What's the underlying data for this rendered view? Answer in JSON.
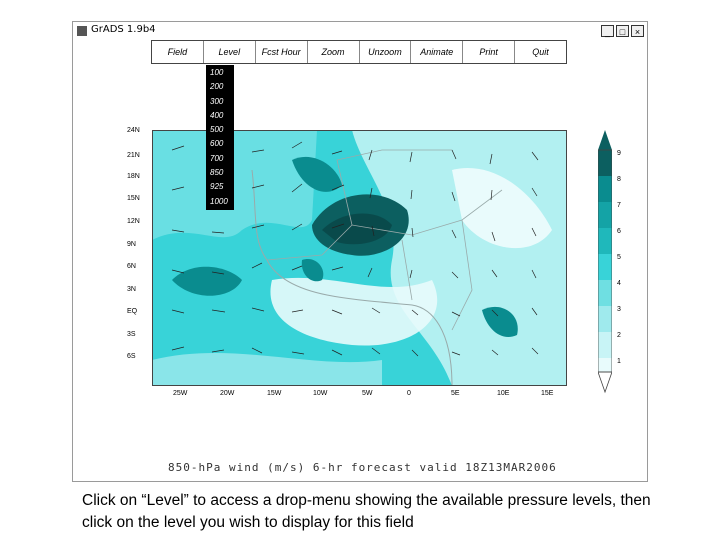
{
  "window": {
    "title": "GrADS 1.9b4",
    "controls": [
      "_",
      "□",
      "×"
    ]
  },
  "menu": {
    "items": [
      {
        "label": "Field"
      },
      {
        "label": "Level"
      },
      {
        "label": "Fcst Hour"
      },
      {
        "label": "Zoom"
      },
      {
        "label": "Unzoom"
      },
      {
        "label": "Animate"
      },
      {
        "label": "Print"
      },
      {
        "label": "Quit"
      }
    ]
  },
  "level_menu": {
    "options": [
      "100",
      "200",
      "300",
      "400",
      "500",
      "600",
      "700",
      "850",
      "925",
      "1000"
    ]
  },
  "map": {
    "lat_labels": [
      "24N",
      "21N",
      "18N",
      "15N",
      "12N",
      "9N",
      "6N",
      "3N",
      "EQ",
      "3S",
      "6S"
    ],
    "lon_labels": [
      "25W",
      "20W",
      "15W",
      "10W",
      "5W",
      "0",
      "5E",
      "10E",
      "15E"
    ],
    "colorbar_labels": [
      "9",
      "8",
      "7",
      "6",
      "5",
      "4",
      "3",
      "2",
      "1"
    ],
    "colors": {
      "light": "#c8f4f6",
      "mid": "#38d3d8",
      "dark": "#0a8c8f",
      "darkest": "#0c5f60"
    }
  },
  "caption": "850-hPa wind (m/s) 6-hr forecast valid 18Z13MAR2006",
  "instructions": "Click on “Level” to access a drop-menu showing the available pressure levels, then click on the level you wish to display for this field"
}
